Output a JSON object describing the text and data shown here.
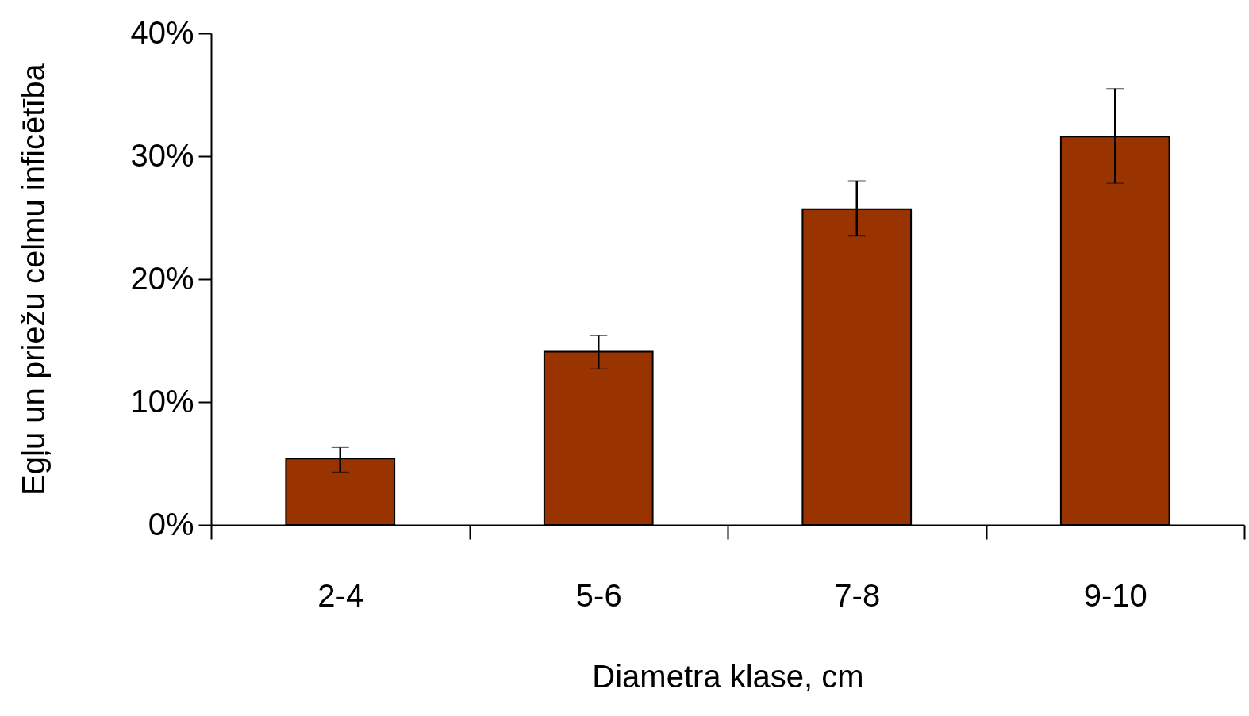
{
  "chart_data": {
    "type": "bar",
    "xlabel": "Diametra klase, cm",
    "ylabel": "Egļu un priežu celmu inficētība",
    "categories": [
      "2-4",
      "5-6",
      "7-8",
      "9-10"
    ],
    "values": [
      5.4,
      14.1,
      25.7,
      31.6
    ],
    "errors": [
      [
        4.3,
        6.3
      ],
      [
        12.7,
        15.4
      ],
      [
        23.5,
        28.0
      ],
      [
        27.8,
        35.5
      ]
    ],
    "color": "#993300",
    "ylim": [
      0,
      40
    ],
    "yticks": [
      {
        "value": 0,
        "label": "0%"
      },
      {
        "value": 10,
        "label": "10%"
      },
      {
        "value": 20,
        "label": "20%"
      },
      {
        "value": 30,
        "label": "30%"
      },
      {
        "value": 40,
        "label": "40%"
      }
    ],
    "grid": false
  }
}
